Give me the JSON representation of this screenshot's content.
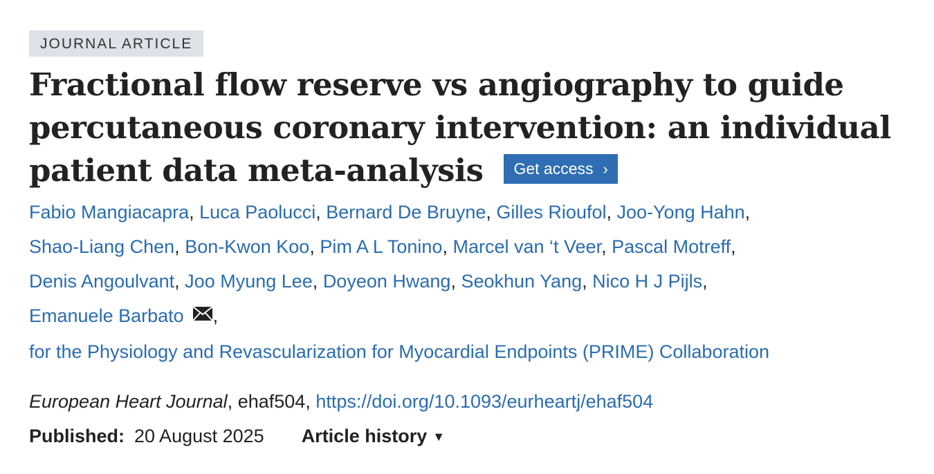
{
  "article_type": "JOURNAL ARTICLE",
  "title": "Fractional flow reserve vs angiography to guide percutaneous coronary intervention: an individual patient data meta-analysis",
  "get_access": {
    "label": "Get access",
    "chevron": "›"
  },
  "authors": [
    "Fabio Mangiacapra",
    "Luca Paolucci",
    "Bernard De Bruyne",
    "Gilles Rioufol",
    "Joo-Yong Hahn",
    "Shao-Liang Chen",
    "Bon-Kwon Koo",
    "Pim A L Tonino",
    "Marcel van ‘t Veer",
    "Pascal Motreff",
    "Denis Angoulvant",
    "Joo Myung Lee",
    "Doyeon Hwang",
    "Seokhun Yang",
    "Nico H J Pijls",
    "Emanuele Barbato"
  ],
  "corresponding_icon": "envelope-icon",
  "collaboration": "for the Physiology and Revascularization for Myocardial Endpoints (PRIME) Collaboration",
  "citation": {
    "journal": "European Heart Journal",
    "article_id": "ehaf504",
    "doi_url": "https://doi.org/10.1093/eurheartj/ehaf504"
  },
  "published": {
    "label": "Published:",
    "date": "20 August 2025"
  },
  "article_history": {
    "label": "Article history",
    "caret": "▼"
  },
  "colors": {
    "link": "#2a6cb0",
    "button": "#2f6eb3",
    "badge_bg": "#dde1e8",
    "text": "#222222"
  }
}
